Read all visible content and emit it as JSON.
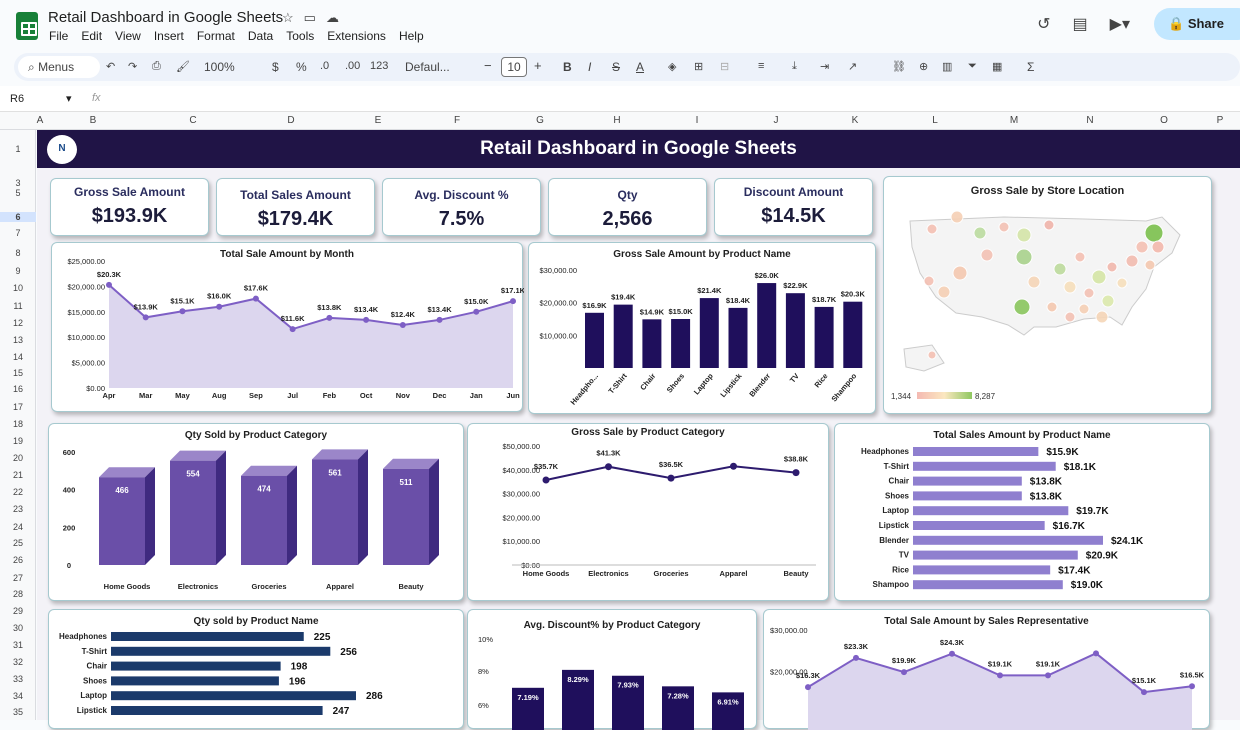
{
  "app": {
    "doc_title": "Retail Dashboard in Google Sheets",
    "menus": [
      "File",
      "Edit",
      "View",
      "Insert",
      "Format",
      "Data",
      "Tools",
      "Extensions",
      "Help"
    ],
    "share_label": "Share",
    "toolbar": {
      "search": "Menus",
      "zoom": "100%",
      "currency": "$",
      "percent": "%",
      "dec_less": ".0",
      "dec_more": ".00",
      "number_format": "123",
      "font": "Defaul...",
      "font_size": "10"
    },
    "name_box": "R6",
    "fx": "fx",
    "columns": [
      "A",
      "B",
      "C",
      "D",
      "E",
      "F",
      "G",
      "H",
      "I",
      "J",
      "K",
      "L",
      "M",
      "N",
      "O",
      "P"
    ],
    "rows": [
      "1",
      "3",
      "5",
      "6",
      "7",
      "8",
      "9",
      "10",
      "11",
      "12",
      "13",
      "14",
      "15",
      "16",
      "17",
      "18",
      "19",
      "20",
      "21",
      "22",
      "23",
      "24",
      "25",
      "26",
      "27",
      "28",
      "29",
      "30",
      "31",
      "32",
      "33",
      "34",
      "35"
    ]
  },
  "dashboard": {
    "title": "Retail Dashboard in Google Sheets",
    "logo_text": "N",
    "kpis": [
      {
        "label": "Gross Sale Amount",
        "value": "$193.9K"
      },
      {
        "label": "Total Sales Amount",
        "value": "$179.4K"
      },
      {
        "label": "Avg. Discount %",
        "value": "7.5%"
      },
      {
        "label": "Qty",
        "value": "2,566"
      },
      {
        "label": "Discount Amount",
        "value": "$14.5K"
      }
    ],
    "map": {
      "title": "Gross Sale by Store Location",
      "legend_min": "1,344",
      "legend_max": "8,287"
    },
    "colors": {
      "banner": "#201446",
      "purple": "#6a4fa8",
      "navy": "#1f0f5c",
      "lavender": "#dcd6ee",
      "line": "#7e5fc5",
      "hbar_blue": "#1b3a6b"
    }
  },
  "chart_data": [
    {
      "id": "month",
      "type": "area",
      "title": "Total Sale Amount by Month",
      "categories": [
        "Apr",
        "Mar",
        "May",
        "Aug",
        "Sep",
        "Jul",
        "Feb",
        "Oct",
        "Nov",
        "Dec",
        "Jan",
        "Jun"
      ],
      "values": [
        20300,
        13900,
        15100,
        16000,
        17600,
        11600,
        13800,
        13400,
        12400,
        13400,
        15000,
        17100
      ],
      "labels": [
        "$20.3K",
        "$13.9K",
        "$15.1K",
        "$16.0K",
        "$17.6K",
        "$11.6K",
        "$13.8K",
        "$13.4K",
        "$12.4K",
        "$13.4K",
        "$15.0K",
        "$17.1K"
      ],
      "yticks": [
        "$0.00",
        "$5,000.00",
        "$10,000.00",
        "$15,000.00",
        "$20,000.00",
        "$25,000.00"
      ],
      "ylim": [
        0,
        25000
      ]
    },
    {
      "id": "gross_product",
      "type": "bar",
      "title": "Gross Sale Amount by Product Name",
      "categories": [
        "Headpho...",
        "T-Shirt",
        "Chair",
        "Shoes",
        "Laptop",
        "Lipstick",
        "Blender",
        "TV",
        "Rice",
        "Shampoo"
      ],
      "values": [
        16900,
        19400,
        14900,
        15000,
        21400,
        18400,
        26000,
        22900,
        18700,
        20300
      ],
      "labels": [
        "$16.9K",
        "$19.4K",
        "$14.9K",
        "$15.0K",
        "$21.4K",
        "$18.4K",
        "$26.0K",
        "$22.9K",
        "$18.7K",
        "$20.3K"
      ],
      "yticks": [
        "$10,000.00",
        "$20,000.00",
        "$30,000.00"
      ],
      "ylim": [
        0,
        30000
      ]
    },
    {
      "id": "qty_category",
      "type": "bar",
      "title": "Qty Sold by Product Category",
      "categories": [
        "Home Goods",
        "Electronics",
        "Groceries",
        "Apparel",
        "Beauty"
      ],
      "values": [
        466,
        554,
        474,
        561,
        511
      ],
      "yticks": [
        "0",
        "200",
        "400",
        "600"
      ],
      "ylim": [
        0,
        600
      ]
    },
    {
      "id": "gross_category",
      "type": "line",
      "title": "Gross Sale by Product Category",
      "categories": [
        "Home Goods",
        "Electronics",
        "Groceries",
        "Apparel",
        "Beauty"
      ],
      "values": [
        35700,
        41300,
        36500,
        41500,
        38800
      ],
      "labels": [
        "$35.7K",
        "$41.3K",
        "$36.5K",
        "",
        "$38.8K"
      ],
      "yticks": [
        "$0.00",
        "$10,000.00",
        "$20,000.00",
        "$30,000.00",
        "$40,000.00",
        "$50,000.00"
      ],
      "ylim": [
        0,
        50000
      ]
    },
    {
      "id": "total_product",
      "type": "bar",
      "title": "Total Sales Amount by Product Name",
      "categories": [
        "Headphones",
        "T-Shirt",
        "Chair",
        "Shoes",
        "Laptop",
        "Lipstick",
        "Blender",
        "TV",
        "Rice",
        "Shampoo"
      ],
      "values": [
        15900,
        18100,
        13800,
        13800,
        19700,
        16700,
        24100,
        20900,
        17400,
        19000
      ],
      "labels": [
        "$15.9K",
        "$18.1K",
        "$13.8K",
        "$13.8K",
        "$19.7K",
        "$16.7K",
        "$24.1K",
        "$20.9K",
        "$17.4K",
        "$19.0K"
      ]
    },
    {
      "id": "qty_product",
      "type": "bar",
      "title": "Qty sold by Product Name",
      "categories": [
        "Headphones",
        "T-Shirt",
        "Chair",
        "Shoes",
        "Laptop",
        "Lipstick"
      ],
      "values": [
        225,
        256,
        198,
        196,
        286,
        247
      ]
    },
    {
      "id": "discount_category",
      "type": "bar",
      "title": "Avg. Discount% by Product Category",
      "values": [
        7.19,
        8.29,
        7.93,
        7.28,
        6.91
      ],
      "labels": [
        "7.19%",
        "8.29%",
        "7.93%",
        "7.28%",
        "6.91%"
      ],
      "yticks": [
        "10%",
        "8%",
        "6%"
      ]
    },
    {
      "id": "sales_rep",
      "type": "area",
      "title": "Total Sale Amount by Sales Representative",
      "values": [
        16300,
        23300,
        19900,
        24300,
        19100,
        19100,
        24400,
        15100,
        16500
      ],
      "labels": [
        "$16.3K",
        "$23.3K",
        "$19.9K",
        "$24.3K",
        "$19.1K",
        "$19.1K",
        "",
        "$15.1K",
        "$16.5K"
      ],
      "yticks": [
        "$30,000.00",
        "$20,000.00"
      ],
      "ylim": [
        0,
        30000
      ]
    }
  ]
}
